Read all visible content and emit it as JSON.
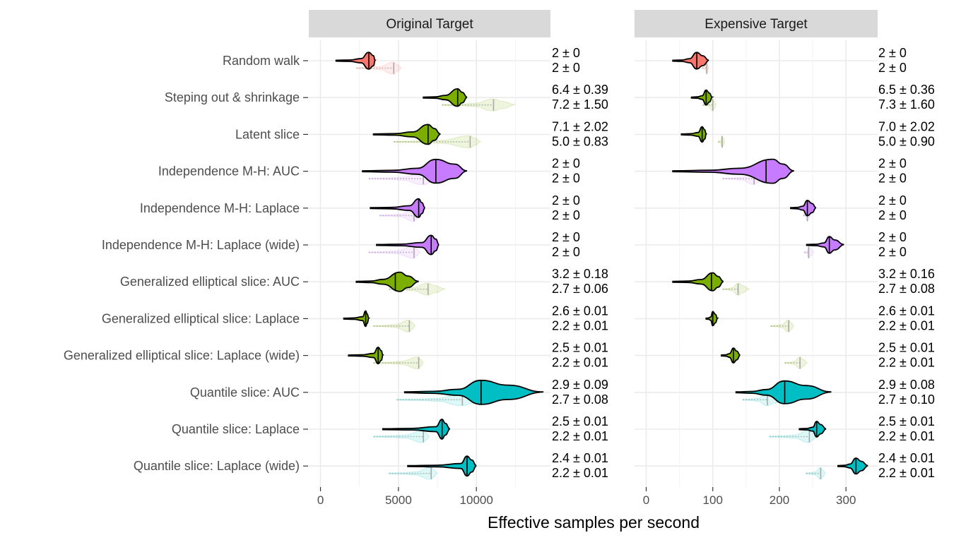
{
  "chart_data": {
    "type": "violin",
    "xlabel": "Effective samples per second",
    "categories": [
      "Random walk",
      "Steping out & shrinkage",
      "Latent slice",
      "Independence M-H: AUC",
      "Independence M-H: Laplace",
      "Independence M-H: Laplace (wide)",
      "Generalized elliptical slice: AUC",
      "Generalized elliptical slice: Laplace",
      "Generalized elliptical slice: Laplace (wide)",
      "Quantile slice: AUC",
      "Quantile slice: Laplace",
      "Quantile slice: Laplace (wide)"
    ],
    "group_colors": [
      "#f8766d",
      "#7cae00",
      "#7cae00",
      "#c77cff",
      "#c77cff",
      "#c77cff",
      "#7cae00",
      "#7cae00",
      "#7cae00",
      "#00bfc4",
      "#00bfc4",
      "#00bfc4"
    ],
    "panels": [
      {
        "title": "Original Target",
        "xlim": [
          -750,
          14750
        ],
        "xticks": [
          0,
          5000,
          10000
        ],
        "xtick_labels": [
          "0",
          "5000",
          "10000"
        ],
        "primary": [
          {
            "min": 1000,
            "q1": 2600,
            "median": 3100,
            "q3": 3400,
            "max": 3500,
            "peak": 3100
          },
          {
            "min": 6600,
            "q1": 8000,
            "median": 8800,
            "q3": 9100,
            "max": 9400,
            "peak": 8800
          },
          {
            "min": 3400,
            "q1": 5900,
            "median": 6900,
            "q3": 7300,
            "max": 7700,
            "peak": 6900
          },
          {
            "min": 2700,
            "q1": 6200,
            "median": 7400,
            "q3": 8600,
            "max": 9400,
            "peak": 7400
          },
          {
            "min": 3200,
            "q1": 5700,
            "median": 6300,
            "q3": 6500,
            "max": 6700,
            "peak": 6300
          },
          {
            "min": 3600,
            "q1": 6500,
            "median": 7100,
            "q3": 7400,
            "max": 7600,
            "peak": 7100
          },
          {
            "min": 2300,
            "q1": 4000,
            "median": 4800,
            "q3": 5600,
            "max": 6300,
            "peak": 5100
          },
          {
            "min": 1500,
            "q1": 2700,
            "median": 2900,
            "q3": 3000,
            "max": 3100,
            "peak": 2900
          },
          {
            "min": 1800,
            "q1": 3400,
            "median": 3700,
            "q3": 3900,
            "max": 4000,
            "peak": 3700
          },
          {
            "min": 5400,
            "q1": 8800,
            "median": 10300,
            "q3": 12000,
            "max": 14300,
            "peak": 10300
          },
          {
            "min": 4000,
            "q1": 7400,
            "median": 7800,
            "q3": 8000,
            "max": 8300,
            "peak": 7800
          },
          {
            "min": 5600,
            "q1": 9000,
            "median": 9400,
            "q3": 9700,
            "max": 10000,
            "peak": 9400
          }
        ],
        "secondary": [
          {
            "min": 2300,
            "median": 4700,
            "max": 5200,
            "peak": 4700
          },
          {
            "min": 7800,
            "median": 11100,
            "max": 12500,
            "peak": 11100
          },
          {
            "min": 4700,
            "median": 9600,
            "max": 10300,
            "peak": 9600
          },
          {
            "min": 3100,
            "median": 6600,
            "max": 7700,
            "peak": 6600
          },
          {
            "min": 3800,
            "median": 6000,
            "max": 6400,
            "peak": 6000
          },
          {
            "min": 3100,
            "median": 6000,
            "max": 6400,
            "peak": 6000
          },
          {
            "min": 4400,
            "median": 6900,
            "max": 8000,
            "peak": 6900
          },
          {
            "min": 3400,
            "median": 5700,
            "max": 6100,
            "peak": 5700
          },
          {
            "min": 3400,
            "median": 6300,
            "max": 6600,
            "peak": 6300
          },
          {
            "min": 4900,
            "median": 9100,
            "max": 10700,
            "peak": 9100
          },
          {
            "min": 3400,
            "median": 6600,
            "max": 7000,
            "peak": 6600
          },
          {
            "min": 4400,
            "median": 7100,
            "max": 7500,
            "peak": 7100
          }
        ],
        "annotations_top": [
          "2 ± 0",
          "6.4 ± 0.39",
          "7.1 ± 2.02",
          "2 ± 0",
          "2 ± 0",
          "2 ± 0",
          "3.2 ± 0.18",
          "2.6 ± 0.01",
          "2.5 ± 0.01",
          "2.9 ± 0.09",
          "2.5 ± 0.01",
          "2.4 ± 0.01"
        ],
        "annotations_bottom": [
          "2 ± 0",
          "7.2 ± 1.50",
          "5.0 ± 0.83",
          "2 ± 0",
          "2 ± 0",
          "2 ± 0",
          "2.7 ± 0.06",
          "2.2 ± 0.01",
          "2.2 ± 0.01",
          "2.7 ± 0.08",
          "2.2 ± 0.01",
          "2.2 ± 0.01"
        ]
      },
      {
        "title": "Expensive Target",
        "xlim": [
          -17.5,
          347.5
        ],
        "xticks": [
          0,
          100,
          200,
          300
        ],
        "xtick_labels": [
          "0",
          "100",
          "200",
          "300"
        ],
        "primary": [
          {
            "min": 40,
            "q1": 65,
            "median": 76,
            "q3": 85,
            "max": 94,
            "peak": 76
          },
          {
            "min": 68,
            "q1": 84,
            "median": 90,
            "q3": 95,
            "max": 99,
            "peak": 90
          },
          {
            "min": 53,
            "q1": 78,
            "median": 84,
            "q3": 88,
            "max": 90,
            "peak": 84
          },
          {
            "min": 40,
            "q1": 140,
            "median": 180,
            "q3": 205,
            "max": 222,
            "peak": 190
          },
          {
            "min": 217,
            "q1": 235,
            "median": 242,
            "q3": 249,
            "max": 255,
            "peak": 242
          },
          {
            "min": 241,
            "q1": 267,
            "median": 275,
            "q3": 283,
            "max": 297,
            "peak": 275
          },
          {
            "min": 40,
            "q1": 82,
            "median": 98,
            "q3": 108,
            "max": 116,
            "peak": 100
          },
          {
            "min": 90,
            "q1": 97,
            "median": 100,
            "q3": 104,
            "max": 107,
            "peak": 100
          },
          {
            "min": 113,
            "q1": 125,
            "median": 131,
            "q3": 136,
            "max": 141,
            "peak": 131
          },
          {
            "min": 135,
            "q1": 180,
            "median": 208,
            "q3": 240,
            "max": 278,
            "peak": 208
          },
          {
            "min": 230,
            "q1": 250,
            "median": 256,
            "q3": 262,
            "max": 270,
            "peak": 256
          },
          {
            "min": 288,
            "q1": 306,
            "median": 315,
            "q3": 323,
            "max": 333,
            "peak": 315
          }
        ],
        "secondary": [
          {
            "min": 84,
            "median": 91,
            "max": 94,
            "peak": 91
          },
          {
            "min": 85,
            "median": 100,
            "max": 105,
            "peak": 100
          },
          {
            "min": 108,
            "median": 114,
            "max": 118,
            "peak": 114
          },
          {
            "min": 115,
            "median": 162,
            "max": 175,
            "peak": 162
          },
          {
            "min": 236,
            "median": 242,
            "max": 247,
            "peak": 242
          },
          {
            "min": 237,
            "median": 244,
            "max": 252,
            "peak": 244
          },
          {
            "min": 115,
            "median": 138,
            "max": 155,
            "peak": 138
          },
          {
            "min": 187,
            "median": 214,
            "max": 222,
            "peak": 214
          },
          {
            "min": 208,
            "median": 231,
            "max": 242,
            "peak": 231
          },
          {
            "min": 145,
            "median": 182,
            "max": 205,
            "peak": 182
          },
          {
            "min": 185,
            "median": 245,
            "max": 256,
            "peak": 245
          },
          {
            "min": 240,
            "median": 262,
            "max": 269,
            "peak": 262
          }
        ],
        "annotations_top": [
          "2 ± 0",
          "6.5 ± 0.36",
          "7.0 ± 2.02",
          "2 ± 0",
          "2 ± 0",
          "2 ± 0",
          "3.2 ± 0.16",
          "2.6 ± 0.01",
          "2.5 ± 0.01",
          "2.9 ± 0.08",
          "2.5 ± 0.01",
          "2.4 ± 0.01"
        ],
        "annotations_bottom": [
          "2 ± 0",
          "7.3 ± 1.60",
          "5.0 ± 0.90",
          "2 ± 0",
          "2 ± 0",
          "2 ± 0",
          "2.7 ± 0.08",
          "2.2 ± 0.01",
          "2.2 ± 0.01",
          "2.7 ± 0.10",
          "2.2 ± 0.01",
          "2.2 ± 0.01"
        ]
      }
    ]
  }
}
